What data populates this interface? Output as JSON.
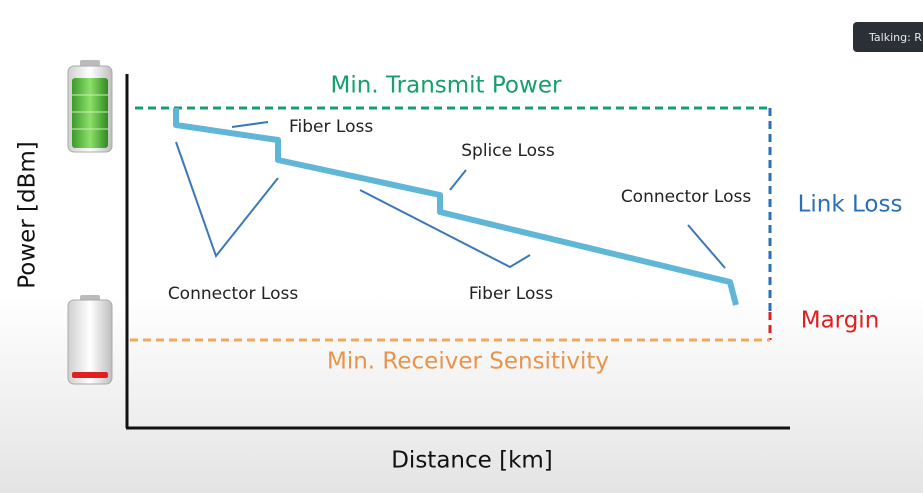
{
  "diagram": {
    "min_transmit_power": "Min. Transmit Power",
    "min_receiver_sensitivity": "Min. Receiver Sensitivity",
    "link_loss": "Link Loss",
    "margin": "Margin",
    "x_axis_label": "Distance [km]",
    "y_axis_label": "Power [dBm]",
    "annotations": [
      "Fiber Loss",
      "Splice Loss",
      "Connector Loss",
      "Connector Loss",
      "Fiber Loss"
    ]
  },
  "overlay": {
    "text": "Talking: R"
  }
}
